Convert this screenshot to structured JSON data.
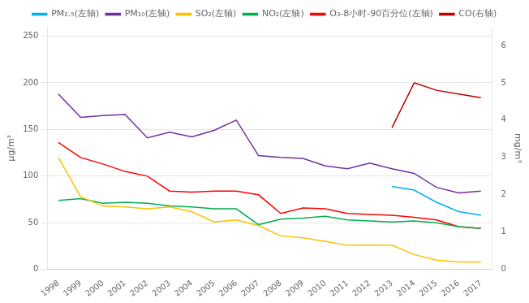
{
  "chart_data": {
    "type": "line",
    "x": [
      1998,
      1999,
      2000,
      2001,
      2002,
      2003,
      2004,
      2005,
      2006,
      2007,
      2008,
      2009,
      2010,
      2011,
      2012,
      2013,
      2014,
      2015,
      2016,
      2017
    ],
    "xlim": [
      1997.5,
      2017.5
    ],
    "xticks": [
      1998,
      1999,
      2000,
      2001,
      2002,
      2003,
      2004,
      2005,
      2006,
      2007,
      2008,
      2009,
      2010,
      2011,
      2012,
      2013,
      2014,
      2015,
      2016,
      2017
    ],
    "ylabel": "μg/m³",
    "y2label": "mg/m³",
    "ylim": [
      0,
      260
    ],
    "yticks": [
      0,
      50,
      100,
      150,
      200,
      250
    ],
    "y2lim": [
      0,
      6.5
    ],
    "y2ticks": [
      0,
      1,
      2,
      3,
      4,
      5,
      6
    ],
    "grid": "y",
    "legend": "top",
    "series": [
      {
        "name": "PM₂.₅(左轴)",
        "color": "#00B0F0",
        "values": [
          null,
          null,
          null,
          null,
          null,
          null,
          null,
          null,
          null,
          null,
          null,
          null,
          null,
          null,
          null,
          89,
          85,
          72,
          62,
          58
        ]
      },
      {
        "name": "PM₁₀(左轴)",
        "color": "#7030A0",
        "values": [
          188,
          163,
          165,
          166,
          141,
          147,
          142,
          149,
          160,
          122,
          120,
          119,
          111,
          108,
          114,
          108,
          103,
          88,
          82,
          84
        ]
      },
      {
        "name": "SO₂(左轴)",
        "color": "#FFC000",
        "values": [
          120,
          78,
          68,
          67,
          65,
          67,
          62,
          51,
          53,
          47,
          36,
          34,
          30,
          26,
          26,
          26,
          16,
          10,
          8,
          8
        ]
      },
      {
        "name": "NO₂(左轴)",
        "color": "#00B050",
        "values": [
          74,
          76,
          71,
          72,
          71,
          68,
          67,
          65,
          65,
          48,
          54,
          55,
          57,
          53,
          52,
          51,
          52,
          50,
          46,
          44
        ]
      },
      {
        "name": "O₃-8小时-90百分位(左轴)",
        "color": "#FF0000",
        "values": [
          136,
          120,
          113,
          105,
          100,
          84,
          83,
          84,
          84,
          80,
          60,
          66,
          65,
          60,
          59,
          58,
          56,
          53,
          46,
          44
        ]
      },
      {
        "name": "CO(右轴)",
        "color": "#C00000",
        "axis": "y2",
        "values": [
          null,
          null,
          null,
          null,
          null,
          null,
          null,
          null,
          null,
          null,
          null,
          null,
          null,
          null,
          null,
          3.8,
          5.0,
          4.8,
          4.7,
          4.6
        ]
      }
    ]
  }
}
